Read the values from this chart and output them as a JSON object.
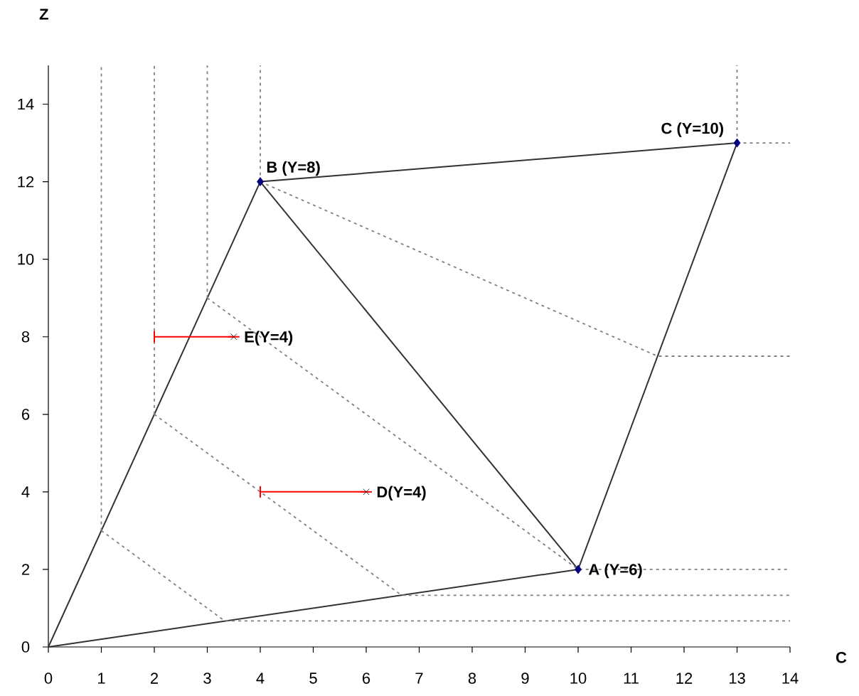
{
  "chart_data": {
    "type": "line",
    "xlabel": "C",
    "ylabel": "Z",
    "xlim": [
      0,
      14
    ],
    "ylim": [
      0,
      15
    ],
    "xticks": [
      0,
      1,
      2,
      3,
      4,
      5,
      6,
      7,
      8,
      9,
      10,
      11,
      12,
      13,
      14
    ],
    "yticks": [
      0,
      2,
      4,
      6,
      8,
      10,
      12,
      14
    ],
    "series": [
      {
        "color": "#333333",
        "line_style": "solid",
        "marker": "none",
        "x": [
          0,
          4,
          13,
          10
        ],
        "values": [
          0,
          12,
          13,
          2
        ]
      },
      {
        "color": "#333333",
        "line_style": "solid",
        "marker": "none",
        "x": [
          10,
          0
        ],
        "values": [
          2,
          0
        ]
      },
      {
        "color": "#333333",
        "line_style": "solid",
        "marker": "none",
        "x": [
          4,
          10
        ],
        "values": [
          12,
          2
        ]
      },
      {
        "type": "line",
        "color": "#808080",
        "line_style": "dotted",
        "marker": "none",
        "x": [
          1,
          1
        ],
        "values": [
          3,
          15
        ]
      },
      {
        "type": "line",
        "color": "#808080",
        "line_style": "dotted",
        "marker": "none",
        "x": [
          2,
          2
        ],
        "values": [
          6,
          15
        ]
      },
      {
        "type": "line",
        "color": "#808080",
        "line_style": "dotted",
        "marker": "none",
        "x": [
          3,
          3
        ],
        "values": [
          9,
          15
        ]
      },
      {
        "type": "line",
        "color": "#808080",
        "line_style": "dotted",
        "marker": "none",
        "x": [
          4,
          4
        ],
        "values": [
          12,
          15
        ]
      },
      {
        "type": "line",
        "color": "#808080",
        "line_style": "dotted",
        "marker": "none",
        "x": [
          13,
          13
        ],
        "values": [
          13,
          15
        ]
      },
      {
        "type": "line",
        "color": "#808080",
        "line_style": "dotted",
        "marker": "none",
        "x": [
          13,
          14
        ],
        "values": [
          13,
          13
        ]
      },
      {
        "type": "line",
        "color": "#808080",
        "line_style": "dotted",
        "marker": "none",
        "x": [
          4,
          11.5,
          14
        ],
        "values": [
          12,
          7.5,
          7.5
        ]
      },
      {
        "type": "line",
        "color": "#808080",
        "line_style": "dotted",
        "marker": "none",
        "x": [
          3,
          10,
          14
        ],
        "values": [
          9,
          2,
          2
        ]
      },
      {
        "type": "line",
        "color": "#808080",
        "line_style": "dotted",
        "marker": "none",
        "x": [
          2,
          6.67,
          14
        ],
        "values": [
          6,
          1.33,
          1.33
        ]
      },
      {
        "type": "line",
        "color": "#808080",
        "line_style": "dotted",
        "marker": "none",
        "x": [
          1,
          3.33,
          14
        ],
        "values": [
          3,
          0.67,
          0.67
        ]
      },
      {
        "type": "scatter",
        "color": "#000080",
        "marker": "diamond",
        "x": [
          10,
          4,
          13
        ],
        "values": [
          2,
          12,
          13
        ]
      },
      {
        "type": "scatter",
        "color": "#000000",
        "marker": "cross",
        "x": [
          6,
          3.5
        ],
        "values": [
          4,
          8
        ],
        "xerrors": [
          [
            4,
            6
          ],
          [
            2,
            3.5
          ]
        ]
      }
    ],
    "annotations": [
      {
        "text": "A (Y=6)",
        "x": 10,
        "y": 2
      },
      {
        "text": "B (Y=8)",
        "x": 4,
        "y": 12
      },
      {
        "text": "C (Y=10)",
        "x": 13,
        "y": 13
      },
      {
        "text": "D(Y=4)",
        "x": 6,
        "y": 4
      },
      {
        "text": "E(Y=4)",
        "x": 3.5,
        "y": 8
      }
    ]
  }
}
